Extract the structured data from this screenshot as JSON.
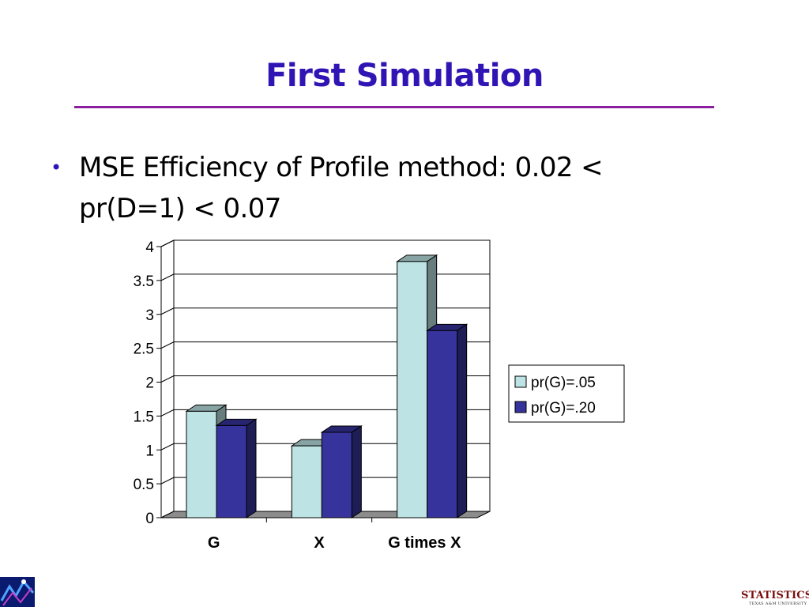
{
  "slide": {
    "title": "First Simulation",
    "bullet": "MSE Efficiency of Profile method: 0.02 < pr(D=1) < 0.07"
  },
  "chart_data": {
    "type": "bar",
    "style": "3d-clustered",
    "categories": [
      "G",
      "X",
      "G times X"
    ],
    "series": [
      {
        "name": "pr(G)=.05",
        "values": [
          1.57,
          1.06,
          3.78
        ],
        "color": "#bde3e4"
      },
      {
        "name": "pr(G)=.20",
        "values": [
          1.36,
          1.26,
          2.76
        ],
        "color": "#36349c"
      }
    ],
    "ylim": [
      0,
      4
    ],
    "yticks": [
      "0",
      "0.5",
      "1",
      "1.5",
      "2",
      "2.5",
      "3",
      "3.5",
      "4"
    ],
    "grid": true,
    "legend": "right",
    "title": "",
    "xlabel": "",
    "ylabel": ""
  },
  "footer": {
    "logo_text": "STATISTICS",
    "logo_subtext": "TEXAS A&M UNIVERSITY"
  }
}
